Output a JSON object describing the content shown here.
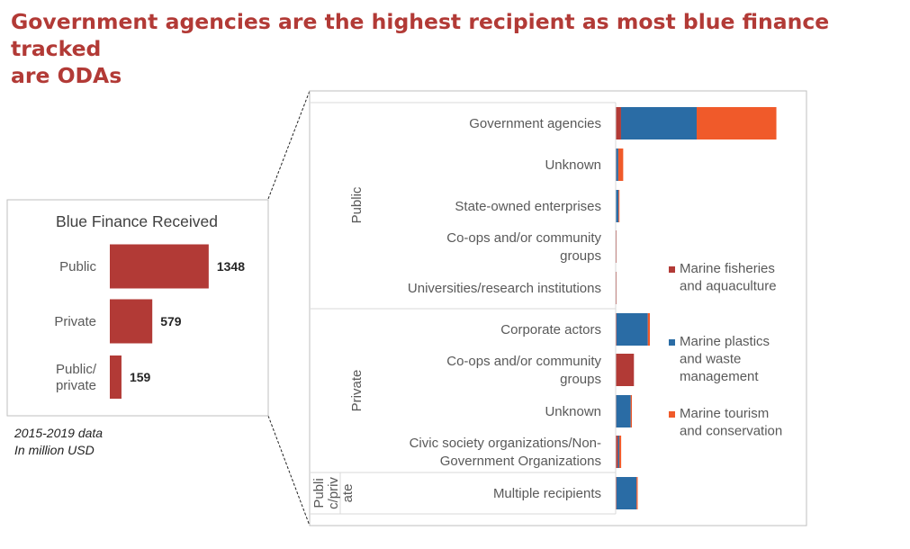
{
  "headline": {
    "line1": "Government agencies are the highest recipient as most blue finance tracked",
    "line2": "are ODAs"
  },
  "note": {
    "line1": "2015-2019 data",
    "line2": "In million USD"
  },
  "colors": {
    "title": "#b23a36",
    "bar_total": "#b23a36",
    "fisheries": "#b23a36",
    "plastics": "#2a6ca5",
    "tourism": "#f05a2a",
    "frame": "#bfbfbf",
    "text": "#595959"
  },
  "chart_data": [
    {
      "type": "bar",
      "orientation": "horizontal",
      "title": "Blue Finance Received",
      "categories": [
        "Public",
        "Private",
        "Public/ private"
      ],
      "values": [
        1348,
        579,
        159
      ],
      "data_labels": [
        "1348",
        "579",
        "159"
      ],
      "xlabel": "",
      "ylabel": "",
      "xlim": [
        0,
        1500
      ],
      "grid": false,
      "legend": "none"
    },
    {
      "type": "bar",
      "orientation": "horizontal",
      "stacked": true,
      "title": "",
      "groups": [
        {
          "label": "Public",
          "categories": [
            "Government agencies",
            "Unknown",
            "State-owned enterprises",
            "Co-ops and/or community groups",
            "Universities/research institutions"
          ]
        },
        {
          "label": "Private",
          "categories": [
            "Corporate actors",
            "Co-ops and/or community groups",
            "Unknown",
            "Civic society organizations/Non-Government Organizations"
          ]
        },
        {
          "label": "Publi c/priv ate",
          "categories": [
            "Multiple recipients"
          ]
        }
      ],
      "categories": [
        "Government agencies",
        "Unknown",
        "State-owned enterprises",
        "Co-ops and/or community groups",
        "Universities/research institutions",
        "Corporate actors",
        "Co-ops and/or community groups",
        "Unknown",
        "Civic society organizations/Non-Government Organizations",
        "Multiple recipients"
      ],
      "series": [
        {
          "name": "Marine fisheries and aquaculture",
          "color": "#b23a36",
          "values": [
            37,
            4,
            2,
            2,
            2,
            6,
            126,
            4,
            17,
            6
          ]
        },
        {
          "name": "Marine plastics and waste management",
          "color": "#2a6ca5",
          "values": [
            522,
            14,
            18,
            0,
            0,
            216,
            0,
            100,
            8,
            138
          ]
        },
        {
          "name": "Marine tourism and conservation",
          "color": "#f05a2a",
          "values": [
            550,
            34,
            2,
            0,
            0,
            14,
            0,
            8,
            13,
            8
          ]
        }
      ],
      "xlim": [
        0,
        1500
      ],
      "grid": false,
      "legend": "right"
    }
  ]
}
